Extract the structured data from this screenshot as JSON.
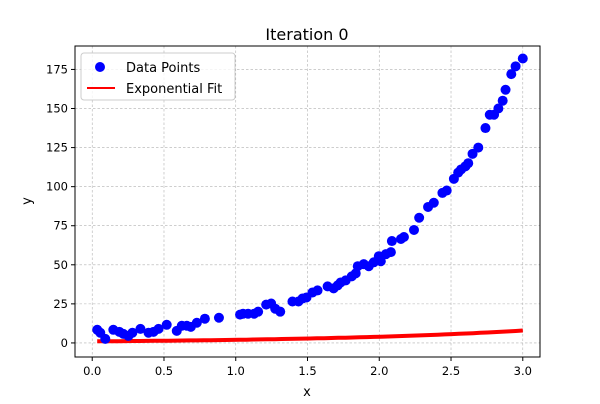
{
  "chart_data": {
    "type": "scatter",
    "title": "Iteration 0",
    "xlabel": "x",
    "ylabel": "y",
    "xlim": [
      -0.12,
      3.12
    ],
    "ylim": [
      -9,
      190
    ],
    "xticks": [
      0.0,
      0.5,
      1.0,
      1.5,
      2.0,
      2.5,
      3.0
    ],
    "xtick_labels": [
      "0.0",
      "0.5",
      "1.0",
      "1.5",
      "2.0",
      "2.5",
      "3.0"
    ],
    "yticks": [
      0,
      25,
      50,
      75,
      100,
      125,
      150,
      175
    ],
    "ytick_labels": [
      "0",
      "25",
      "50",
      "75",
      "100",
      "125",
      "150",
      "175"
    ],
    "grid": true,
    "legend_position": "top-left",
    "colors": {
      "points": "#0000ff",
      "fit": "#ff0000",
      "grid": "#b0b0b0"
    },
    "series": [
      {
        "name": "Data Points",
        "kind": "scatter",
        "x": [
          0.035,
          0.056,
          0.091,
          0.147,
          0.189,
          0.217,
          0.252,
          0.28,
          0.336,
          0.392,
          0.427,
          0.462,
          0.519,
          0.589,
          0.624,
          0.659,
          0.687,
          0.729,
          0.785,
          0.883,
          1.03,
          1.051,
          1.086,
          1.128,
          1.156,
          1.212,
          1.247,
          1.275,
          1.31,
          1.395,
          1.437,
          1.465,
          1.493,
          1.535,
          1.57,
          1.64,
          1.682,
          1.71,
          1.731,
          1.766,
          1.808,
          1.836,
          1.85,
          1.892,
          1.927,
          1.962,
          1.997,
          2.011,
          2.046,
          2.081,
          2.088,
          2.151,
          2.172,
          2.242,
          2.278,
          2.34,
          2.38,
          2.44,
          2.47,
          2.52,
          2.55,
          2.57,
          2.6,
          2.62,
          2.65,
          2.69,
          2.74,
          2.77,
          2.8,
          2.83,
          2.86,
          2.88,
          2.92,
          2.95,
          3.0
        ],
        "y": [
          8.4,
          6.5,
          2.6,
          8.4,
          7.1,
          5.8,
          4.5,
          6.5,
          9.0,
          6.5,
          7.1,
          9.0,
          11.6,
          7.7,
          11.0,
          11.0,
          10.3,
          12.9,
          15.5,
          16.1,
          18.1,
          18.7,
          18.7,
          18.7,
          20.0,
          24.5,
          25.2,
          21.9,
          20.0,
          26.5,
          26.5,
          28.4,
          29.1,
          32.3,
          33.6,
          36.2,
          34.9,
          36.8,
          38.7,
          40.0,
          42.6,
          44.5,
          49.1,
          50.4,
          49.1,
          51.6,
          55.5,
          52.3,
          56.8,
          58.1,
          65.2,
          66.5,
          67.8,
          72.3,
          80.1,
          87.0,
          89.7,
          96.0,
          97.5,
          105.0,
          109.0,
          111.0,
          113.0,
          115.0,
          121.0,
          125.0,
          137.5,
          146.0,
          146.0,
          150.0,
          155.0,
          162.0,
          172.0,
          177.0,
          182.0
        ]
      },
      {
        "name": "Exponential Fit",
        "kind": "line",
        "model": "a*exp(b*x)",
        "a": 1.0,
        "b": 0.69,
        "x_range": [
          0.035,
          3.0
        ]
      }
    ]
  }
}
